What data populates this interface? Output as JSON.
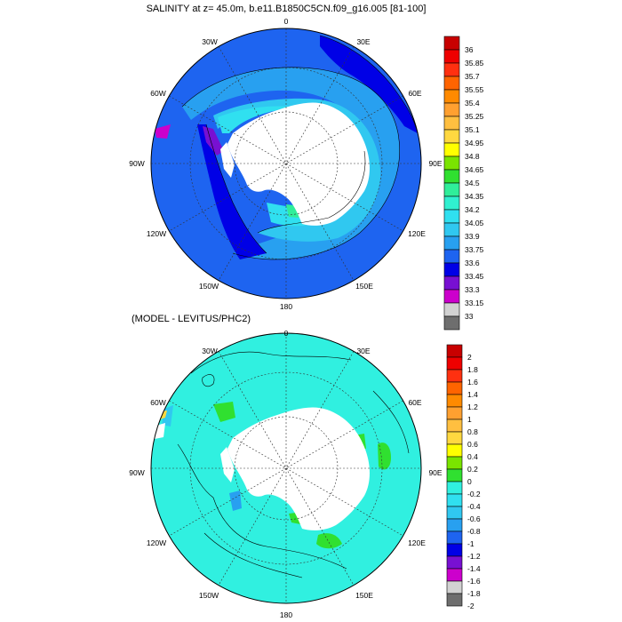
{
  "panels": [
    {
      "title": "SALINITY at z=  45.0m, b.e11.B1850C5CN.f09_g16.005 [81-100]",
      "lon_labels": [
        "0",
        "30E",
        "60E",
        "90E",
        "120E",
        "150E",
        "180",
        "150W",
        "120W",
        "90W",
        "60W",
        "30W"
      ],
      "colorbar": {
        "labels": [
          "36",
          "35.85",
          "35.7",
          "35.55",
          "35.4",
          "35.25",
          "35.1",
          "34.95",
          "34.8",
          "34.65",
          "34.5",
          "34.35",
          "34.2",
          "34.05",
          "33.9",
          "33.75",
          "33.6",
          "33.45",
          "33.3",
          "33.15",
          "33"
        ],
        "colors": [
          "#c80000",
          "#ee0000",
          "#ff3010",
          "#ff6400",
          "#ff8a00",
          "#ffa030",
          "#ffbf40",
          "#ffd840",
          "#ffff00",
          "#7ae400",
          "#30e030",
          "#30ee9a",
          "#30f0d0",
          "#30e0f0",
          "#30c8f0",
          "#28a0f0",
          "#1e64f0",
          "#0000e6",
          "#7810d2",
          "#cc00cc",
          "#d2d2d2",
          "#6e6e6e"
        ]
      }
    },
    {
      "title": "(MODEL - LEVITUS/PHC2)",
      "lon_labels": [
        "0",
        "30E",
        "60E",
        "90E",
        "120E",
        "150E",
        "180",
        "150W",
        "120W",
        "90W",
        "60W",
        "30W"
      ],
      "colorbar": {
        "labels": [
          "2",
          "1.8",
          "1.6",
          "1.4",
          "1.2",
          "1",
          "0.8",
          "0.6",
          "0.4",
          "0.2",
          "0",
          "-0.2",
          "-0.4",
          "-0.6",
          "-0.8",
          "-1",
          "-1.2",
          "-1.4",
          "-1.6",
          "-1.8",
          "-2"
        ],
        "colors": [
          "#c80000",
          "#ee0000",
          "#ff3010",
          "#ff6400",
          "#ff8a00",
          "#ffa030",
          "#ffbf40",
          "#ffd840",
          "#ffff00",
          "#7ae400",
          "#30e030",
          "#30f0e0",
          "#30e0f0",
          "#30c8f0",
          "#28a0f0",
          "#1e64f0",
          "#0000e6",
          "#7810d2",
          "#cc00cc",
          "#d2d2d2",
          "#6e6e6e"
        ]
      }
    }
  ]
}
